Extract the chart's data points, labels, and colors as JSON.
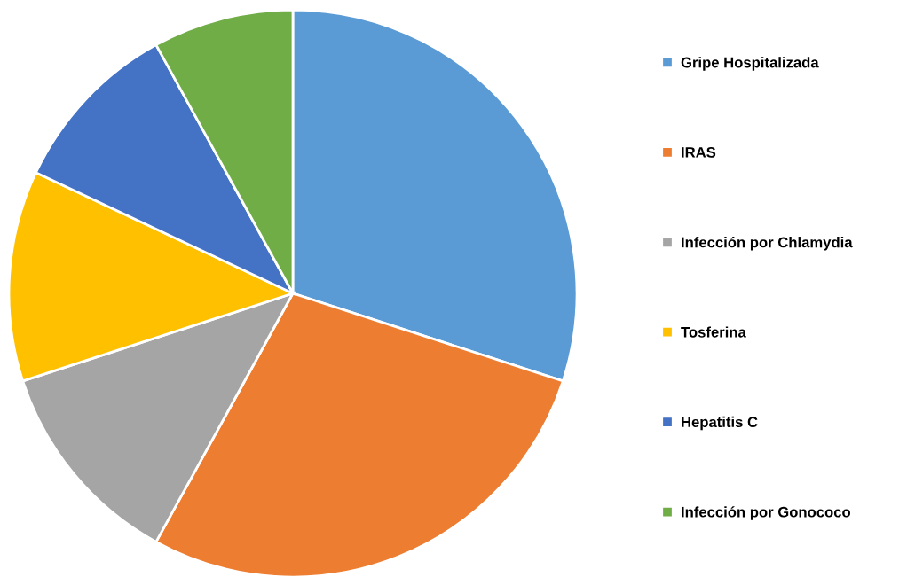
{
  "chart_data": {
    "type": "pie",
    "categories": [
      "Gripe Hospitalizada",
      "IRAS",
      "Infección por Chlamydia",
      "Tosferina",
      "Hepatitis C",
      "Infección por Gonococo"
    ],
    "values": [
      30,
      28,
      12,
      12,
      10,
      8
    ],
    "colors": [
      "#5b9bd5",
      "#ed7d31",
      "#a5a5a5",
      "#ffc000",
      "#4472c4",
      "#70ad47"
    ],
    "legend": "right"
  }
}
